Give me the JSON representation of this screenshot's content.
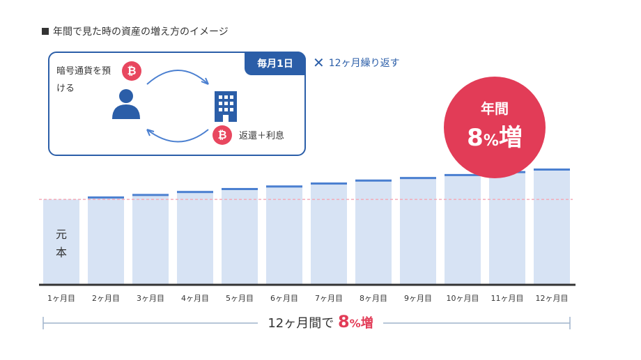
{
  "title": "年間で見た時の資産の増え方のイメージ",
  "info": {
    "monthly_tag": "毎月1日",
    "deposit_text": "暗号通貨を預ける",
    "return_text": "返還＋利息",
    "repeat_text": "12ヶ月繰り返す",
    "coin_symbol": "₿"
  },
  "annual": {
    "label": "年間",
    "value_num": "8",
    "value_pct": "%",
    "value_unit": "増"
  },
  "principal_label": "元本",
  "summary": {
    "prefix": "12ヶ月間で",
    "num": "8",
    "pct": "%",
    "unit": "増"
  },
  "colors": {
    "bar_fill": "#d7e3f4",
    "bar_cap": "#4a7fd0",
    "accent_blue": "#2b5ea8",
    "accent_red": "#e23c57",
    "baseline": "#333333",
    "principal_line": "#f4a9b6"
  },
  "chart_data": {
    "type": "bar",
    "categories": [
      "1ヶ月目",
      "2ヶ月目",
      "3ヶ月目",
      "4ヶ月目",
      "5ヶ月目",
      "6ヶ月目",
      "7ヶ月目",
      "8ヶ月目",
      "9ヶ月目",
      "10ヶ月目",
      "11ヶ月目",
      "12ヶ月目"
    ],
    "values": [
      100,
      100.7,
      101.3,
      102,
      102.7,
      103.3,
      104,
      104.7,
      105.3,
      106,
      106.7,
      107.3
    ],
    "principal": 100,
    "ylim": [
      0,
      108
    ],
    "grid": false,
    "legend": "none"
  }
}
